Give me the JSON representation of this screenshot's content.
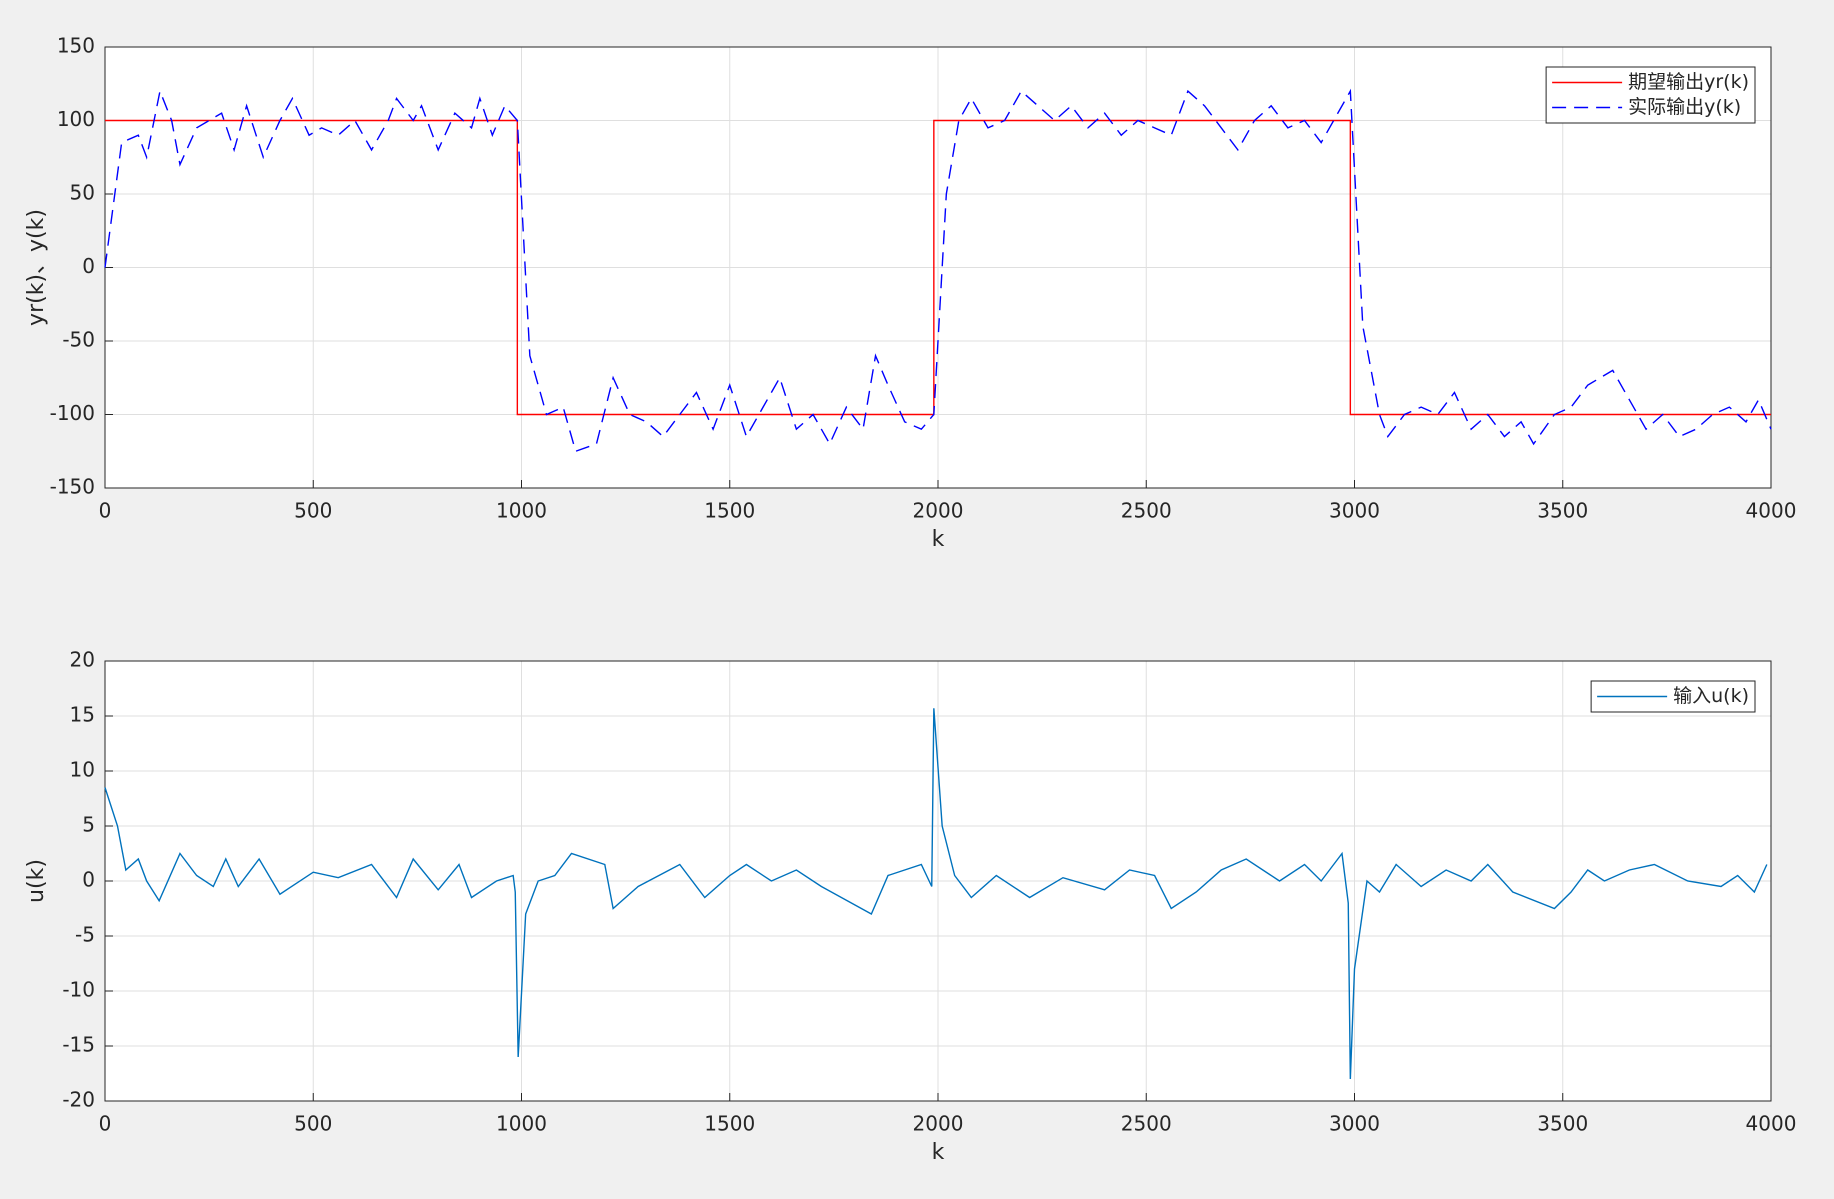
{
  "chart_data": [
    {
      "type": "line",
      "xlabel": "k",
      "ylabel": "yr(k)、y(k)",
      "xlim": [
        0,
        4000
      ],
      "xticks": [
        0,
        500,
        1000,
        1500,
        2000,
        2500,
        3000,
        3500,
        4000
      ],
      "ylim": [
        -150,
        150
      ],
      "yticks": [
        -150,
        -100,
        -50,
        0,
        50,
        100,
        150
      ],
      "grid": true,
      "legend": "upper right",
      "series": [
        {
          "name": "期望输出yr(k)",
          "color": "#ff0000",
          "line_style": "solid",
          "x": [
            0,
            990,
            990,
            1990,
            1990,
            2990,
            2990,
            4000
          ],
          "values": [
            100,
            100,
            -100,
            -100,
            100,
            100,
            -100,
            -100
          ]
        },
        {
          "name": "实际输出y(k)",
          "color": "#0000ff",
          "line_style": "dashed",
          "x": [
            0,
            40,
            80,
            100,
            132,
            160,
            180,
            220,
            280,
            310,
            340,
            380,
            420,
            450,
            490,
            520,
            560,
            600,
            640,
            680,
            700,
            740,
            760,
            800,
            840,
            880,
            900,
            930,
            960,
            990,
            1020,
            1060,
            1100,
            1130,
            1180,
            1220,
            1260,
            1300,
            1340,
            1380,
            1420,
            1460,
            1500,
            1540,
            1580,
            1620,
            1660,
            1700,
            1740,
            1780,
            1820,
            1850,
            1880,
            1920,
            1960,
            1990,
            2020,
            2050,
            2080,
            2120,
            2160,
            2200,
            2240,
            2280,
            2320,
            2360,
            2400,
            2440,
            2480,
            2520,
            2560,
            2600,
            2640,
            2680,
            2720,
            2760,
            2800,
            2840,
            2880,
            2920,
            2960,
            2990,
            3020,
            3060,
            3080,
            3120,
            3160,
            3200,
            3240,
            3280,
            3320,
            3360,
            3400,
            3430,
            3480,
            3520,
            3560,
            3620,
            3660,
            3700,
            3740,
            3780,
            3820,
            3860,
            3900,
            3940,
            3970,
            4000
          ],
          "values": [
            0,
            85,
            90,
            75,
            120,
            100,
            70,
            95,
            105,
            80,
            110,
            75,
            100,
            115,
            90,
            95,
            90,
            100,
            80,
            100,
            115,
            100,
            110,
            80,
            105,
            95,
            115,
            90,
            110,
            100,
            -60,
            -100,
            -95,
            -125,
            -120,
            -75,
            -100,
            -105,
            -115,
            -100,
            -85,
            -110,
            -80,
            -115,
            -95,
            -75,
            -110,
            -100,
            -120,
            -95,
            -110,
            -60,
            -80,
            -105,
            -110,
            -100,
            50,
            100,
            115,
            95,
            100,
            120,
            110,
            100,
            110,
            95,
            105,
            90,
            100,
            95,
            90,
            120,
            110,
            95,
            80,
            100,
            110,
            95,
            100,
            85,
            105,
            120,
            -40,
            -100,
            -115,
            -100,
            -95,
            -100,
            -85,
            -110,
            -100,
            -115,
            -105,
            -120,
            -100,
            -95,
            -80,
            -70,
            -90,
            -110,
            -100,
            -115,
            -110,
            -100,
            -95,
            -105,
            -90,
            -110
          ]
        }
      ]
    },
    {
      "type": "line",
      "xlabel": "k",
      "ylabel": "u(k)",
      "xlim": [
        0,
        4000
      ],
      "xticks": [
        0,
        500,
        1000,
        1500,
        2000,
        2500,
        3000,
        3500,
        4000
      ],
      "ylim": [
        -20,
        20
      ],
      "yticks": [
        -20,
        -15,
        -10,
        -5,
        0,
        5,
        10,
        15,
        20
      ],
      "grid": true,
      "legend": "upper right",
      "series": [
        {
          "name": "输入u(k)",
          "color": "#0072bd",
          "line_style": "solid",
          "x": [
            0,
            30,
            50,
            80,
            100,
            130,
            180,
            220,
            260,
            290,
            320,
            370,
            420,
            500,
            560,
            640,
            700,
            740,
            800,
            850,
            880,
            940,
            980,
            985,
            992,
            1010,
            1040,
            1080,
            1120,
            1200,
            1220,
            1280,
            1380,
            1440,
            1500,
            1540,
            1600,
            1660,
            1720,
            1840,
            1880,
            1960,
            1985,
            1990,
            2010,
            2040,
            2080,
            2140,
            2220,
            2300,
            2400,
            2460,
            2520,
            2560,
            2620,
            2680,
            2740,
            2820,
            2880,
            2920,
            2970,
            2985,
            2990,
            3000,
            3030,
            3060,
            3100,
            3160,
            3220,
            3280,
            3320,
            3380,
            3480,
            3520,
            3560,
            3600,
            3660,
            3720,
            3800,
            3880,
            3920,
            3960,
            3990
          ],
          "values": [
            8.5,
            5,
            1,
            2,
            0,
            -1.8,
            2.5,
            0.5,
            -0.5,
            2,
            -0.5,
            2,
            -1.2,
            0.8,
            0.3,
            1.5,
            -1.5,
            2,
            -0.8,
            1.5,
            -1.5,
            0,
            0.5,
            -1,
            -16,
            -3,
            0,
            0.5,
            2.5,
            1.5,
            -2.5,
            -0.5,
            1.5,
            -1.5,
            0.5,
            1.5,
            0,
            1,
            -0.5,
            -3,
            0.5,
            1.5,
            -0.5,
            15.7,
            5,
            0.5,
            -1.5,
            0.5,
            -1.5,
            0.3,
            -0.8,
            1,
            0.5,
            -2.5,
            -1,
            1,
            2,
            0,
            1.5,
            0,
            2.5,
            -2,
            -18,
            -8,
            0,
            -1,
            1.5,
            -0.5,
            1,
            0,
            1.5,
            -1,
            -2.5,
            -1,
            1,
            0,
            1,
            1.5,
            0,
            -0.5,
            0.5,
            -1,
            1.5
          ]
        }
      ]
    }
  ]
}
